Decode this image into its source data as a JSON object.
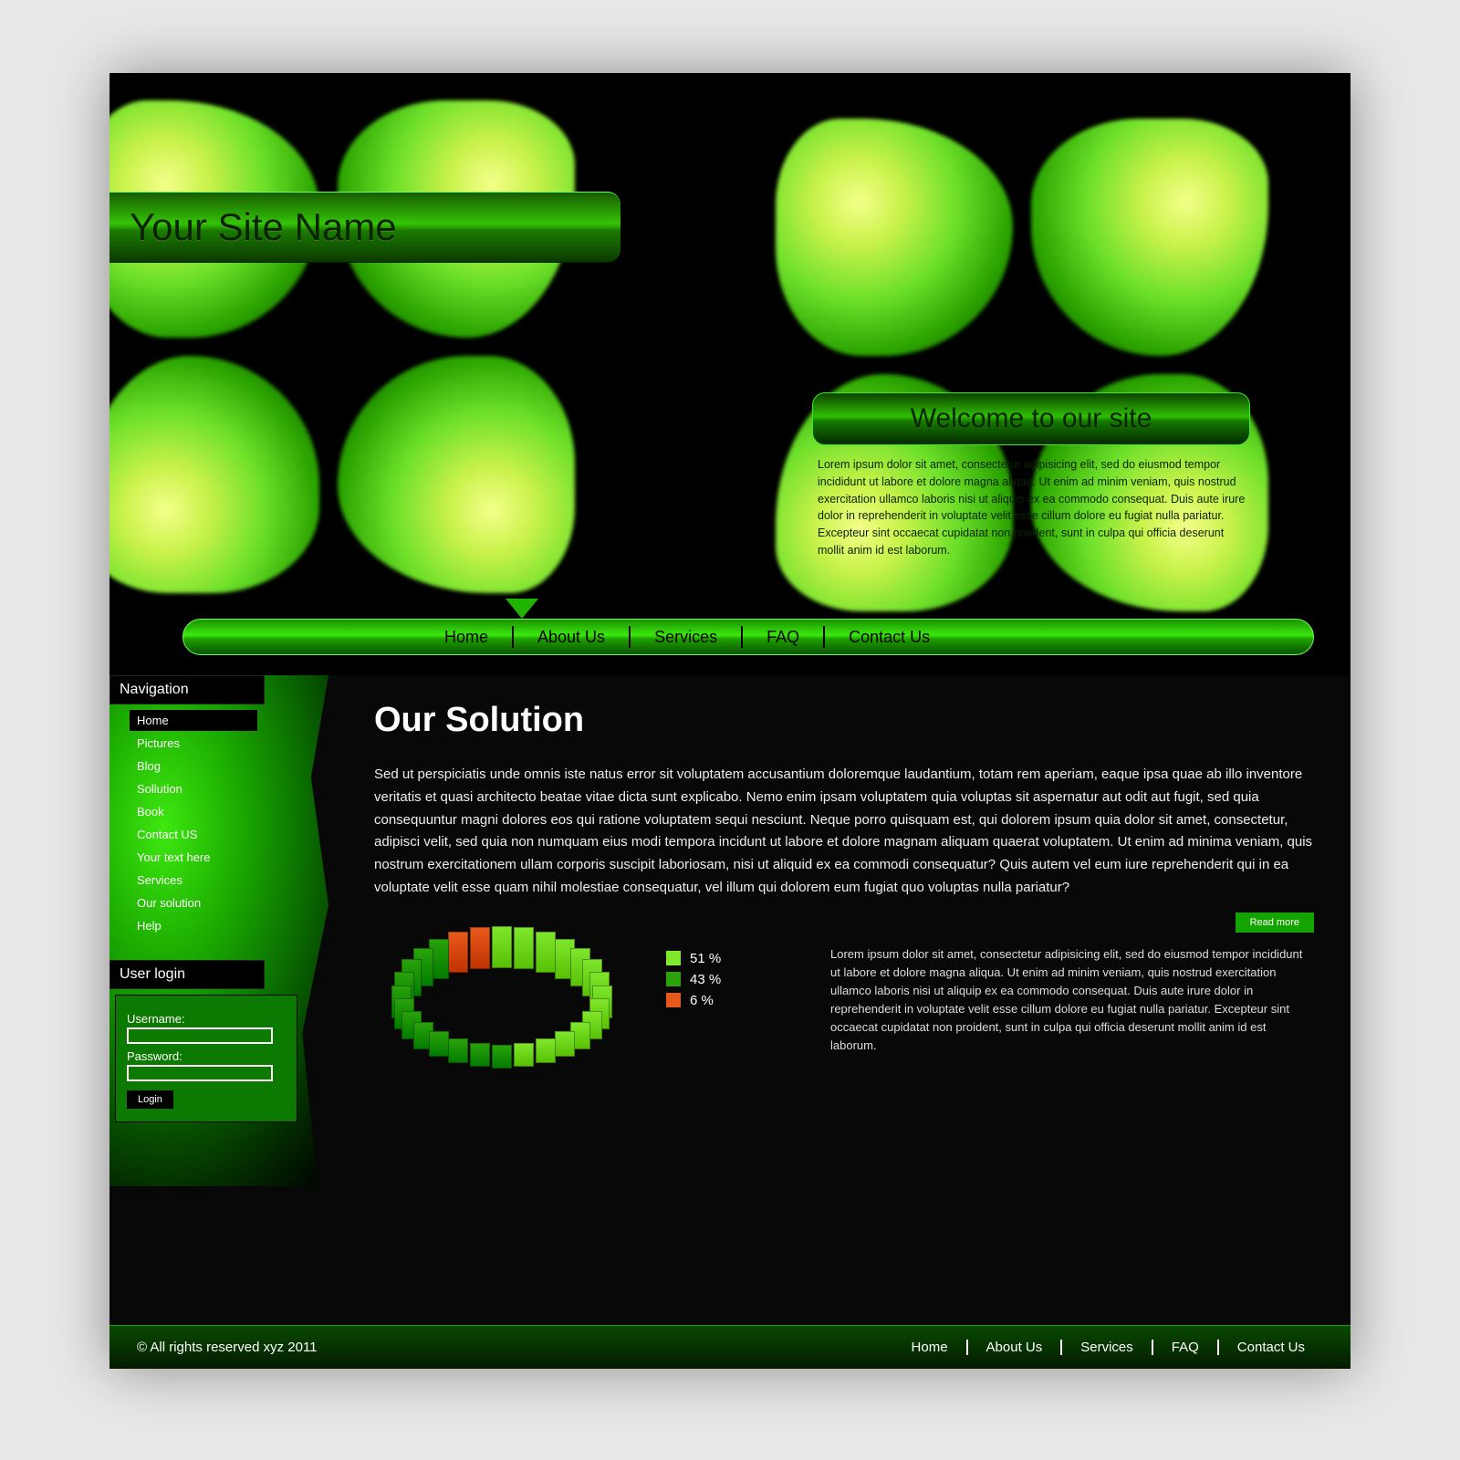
{
  "site": {
    "name": "Your Site Name"
  },
  "hero": {
    "welcome_title": "Welcome to our site",
    "welcome_body": "Lorem ipsum dolor sit amet, consectetur adipisicing elit, sed do eiusmod tempor incididunt ut labore et dolore magna aliqua. Ut enim ad minim veniam, quis nostrud exercitation ullamco laboris nisi ut aliquip ex ea commodo consequat. Duis aute irure dolor in reprehenderit in voluptate velit esse cillum dolore eu fugiat nulla pariatur. Excepteur sint occaecat cupidatat non proident, sunt in culpa qui officia deserunt mollit anim id est laborum.",
    "bg_colors": {
      "petal_center": "#f4ff8a",
      "petal_mid": "#6de02a",
      "petal_edge": "#063700"
    }
  },
  "topnav": {
    "items": [
      "Home",
      "About Us",
      "Services",
      "FAQ",
      "Contact Us"
    ],
    "active_index": 0,
    "bar_gradient": [
      "#1b9100",
      "#3be80f",
      "#1fa300",
      "#0a5200"
    ]
  },
  "sidebar": {
    "nav_title": "Navigation",
    "items": [
      "Home",
      "Pictures",
      "Blog",
      "Sollution",
      "Book",
      "Contact US",
      "Your text here",
      "Services",
      "Our solution",
      "Help"
    ],
    "active_index": 0,
    "login_title": "User login",
    "login": {
      "username_label": "Username:",
      "password_label": "Password:",
      "button_label": "Login"
    },
    "bg_gradient": [
      "#3de80f",
      "#1aa800",
      "#0a6b00",
      "#032b00",
      "#000000"
    ]
  },
  "main": {
    "heading": "Our Solution",
    "body": "Sed ut perspiciatis unde omnis iste natus error sit voluptatem accusantium doloremque laudantium, totam rem aperiam, eaque ipsa quae ab illo inventore veritatis et quasi architecto beatae vitae dicta sunt explicabo. Nemo enim ipsam voluptatem quia voluptas sit aspernatur aut odit aut fugit, sed quia consequuntur magni dolores eos qui ratione voluptatem sequi nesciunt. Neque porro quisquam est, qui dolorem ipsum quia dolor sit amet, consectetur, adipisci velit, sed quia non numquam eius modi tempora incidunt ut labore et dolore magnam aliquam quaerat voluptatem. Ut enim ad minima veniam, quis nostrum exercitationem ullam corporis suscipit laboriosam, nisi ut aliquid ex ea commodi consequatur? Quis autem vel eum iure reprehenderit qui in ea voluptate velit esse quam nihil molestiae consequatur, vel illum qui dolorem eum fugiat quo voluptas nulla pariatur?",
    "readmore_label": "Read more"
  },
  "chart": {
    "type": "ring-3d-segmented",
    "segments_total": 28,
    "series": [
      {
        "label": "51 %",
        "value": 51,
        "color": "#7fe82c"
      },
      {
        "label": "43 %",
        "value": 43,
        "color": "#2aa30a"
      },
      {
        "label": "6 %",
        "value": 6,
        "color": "#e85a1c"
      }
    ],
    "segment_border": "#00000055",
    "description": "Lorem ipsum dolor sit amet, consectetur adipisicing elit, sed do eiusmod tempor incididunt ut labore et dolore magna aliqua. Ut enim ad minim veniam, quis nostrud exercitation ullamco laboris nisi ut aliquip ex ea commodo consequat. Duis aute irure dolor in reprehenderit in voluptate velit esse cillum dolore eu fugiat nulla pariatur. Excepteur sint occaecat cupidatat non proident, sunt in culpa qui officia deserunt mollit anim id est laborum."
  },
  "footer": {
    "copyright": "© All rights reserved xyz 2011",
    "items": [
      "Home",
      "About Us",
      "Services",
      "FAQ",
      "Contact Us"
    ]
  },
  "colors": {
    "page_bg": "#080808",
    "accent": "#1fb400",
    "text": "#ffffff",
    "button_bg": "#14a400"
  }
}
